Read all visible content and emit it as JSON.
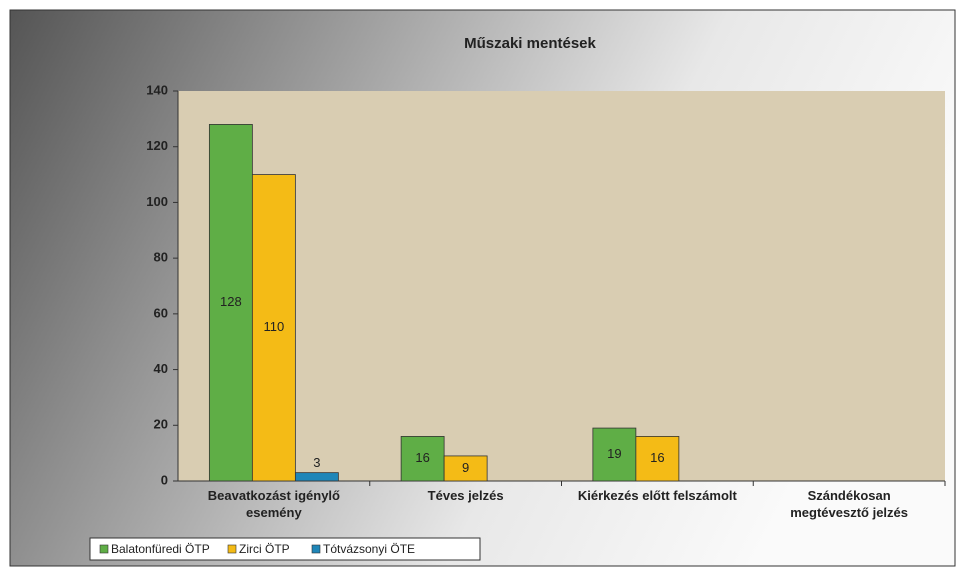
{
  "chart_data": {
    "type": "bar",
    "title": "Műszaki mentések",
    "categories": [
      "Beavatkozást igénylő esemény",
      "Téves jelzés",
      "Kiérkezés előtt felszámolt",
      "Szándékosan megtévesztő jelzés"
    ],
    "series": [
      {
        "name": "Balatonfüredi ÖTP",
        "color": "#5fae46",
        "values": [
          128,
          16,
          19,
          null
        ]
      },
      {
        "name": "Zirci ÖTP",
        "color": "#f4bb16",
        "values": [
          110,
          9,
          16,
          null
        ]
      },
      {
        "name": "Tótvázsonyi ÖTE",
        "color": "#1f86b8",
        "values": [
          3,
          null,
          null,
          null
        ]
      }
    ],
    "ylim": [
      0,
      140
    ],
    "yticks": [
      0,
      20,
      40,
      60,
      80,
      100,
      120,
      140
    ],
    "grid": false,
    "legend": "bottom-left"
  }
}
